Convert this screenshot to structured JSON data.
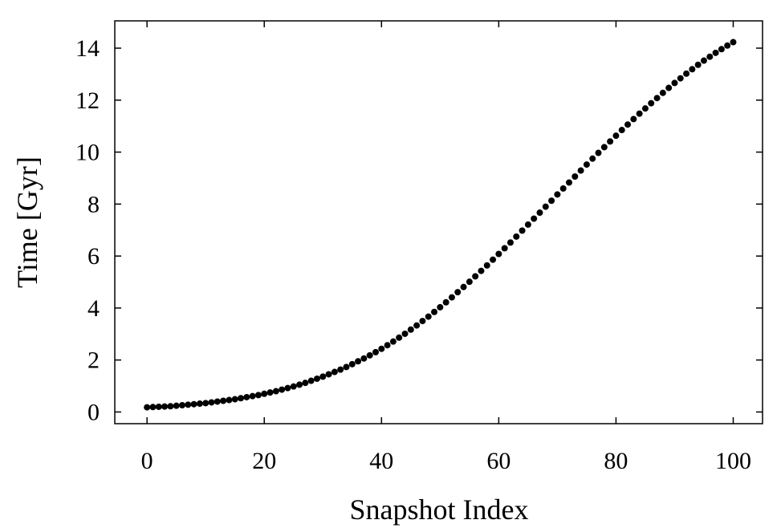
{
  "chart_data": {
    "type": "scatter",
    "xlabel": "Snapshot Index",
    "ylabel": "Time [Gyr]",
    "xlim": [
      -5.5,
      105
    ],
    "ylim": [
      -0.45,
      15.05
    ],
    "xticks": [
      "0",
      "20",
      "40",
      "60",
      "80",
      "100"
    ],
    "yticks": [
      "0",
      "2",
      "4",
      "6",
      "8",
      "10",
      "12",
      "14"
    ],
    "grid": false,
    "marker_color": "#000000",
    "series": [
      {
        "x": [
          0,
          1,
          2,
          3,
          4,
          5,
          6,
          7,
          8,
          9,
          10,
          11,
          12,
          13,
          14,
          15,
          16,
          17,
          18,
          19,
          20,
          21,
          22,
          23,
          24,
          25,
          26,
          27,
          28,
          29,
          30,
          31,
          32,
          33,
          34,
          35,
          36,
          37,
          38,
          39,
          40,
          41,
          42,
          43,
          44,
          45,
          46,
          47,
          48,
          49,
          50,
          51,
          52,
          53,
          54,
          55,
          56,
          57,
          58,
          59,
          60,
          61,
          62,
          63,
          64,
          65,
          66,
          67,
          68,
          69,
          70,
          71,
          72,
          73,
          74,
          75,
          76,
          77,
          78,
          79,
          80,
          81,
          82,
          83,
          84,
          85,
          86,
          87,
          88,
          89,
          90,
          91,
          92,
          93,
          94,
          95,
          96,
          97,
          98,
          99,
          100
        ],
        "y": [
          0.18,
          0.19,
          0.2,
          0.21,
          0.22,
          0.24,
          0.26,
          0.28,
          0.3,
          0.32,
          0.34,
          0.37,
          0.4,
          0.43,
          0.46,
          0.49,
          0.53,
          0.57,
          0.61,
          0.65,
          0.7,
          0.75,
          0.8,
          0.86,
          0.92,
          0.98,
          1.05,
          1.12,
          1.2,
          1.28,
          1.36,
          1.45,
          1.54,
          1.63,
          1.73,
          1.84,
          1.95,
          2.06,
          2.18,
          2.3,
          2.43,
          2.57,
          2.71,
          2.86,
          3.01,
          3.17,
          3.33,
          3.5,
          3.67,
          3.85,
          4.03,
          4.22,
          4.41,
          4.61,
          4.81,
          5.01,
          5.22,
          5.43,
          5.64,
          5.86,
          6.08,
          6.3,
          6.52,
          6.75,
          6.98,
          7.21,
          7.44,
          7.67,
          7.9,
          8.13,
          8.37,
          8.6,
          8.83,
          9.06,
          9.29,
          9.52,
          9.75,
          9.97,
          10.19,
          10.41,
          10.63,
          10.85,
          11.06,
          11.27,
          11.48,
          11.68,
          11.88,
          12.08,
          12.28,
          12.47,
          12.66,
          12.84,
          13.02,
          13.19,
          13.36,
          13.52,
          13.67,
          13.82,
          13.96,
          14.1,
          14.23
        ]
      }
    ]
  }
}
